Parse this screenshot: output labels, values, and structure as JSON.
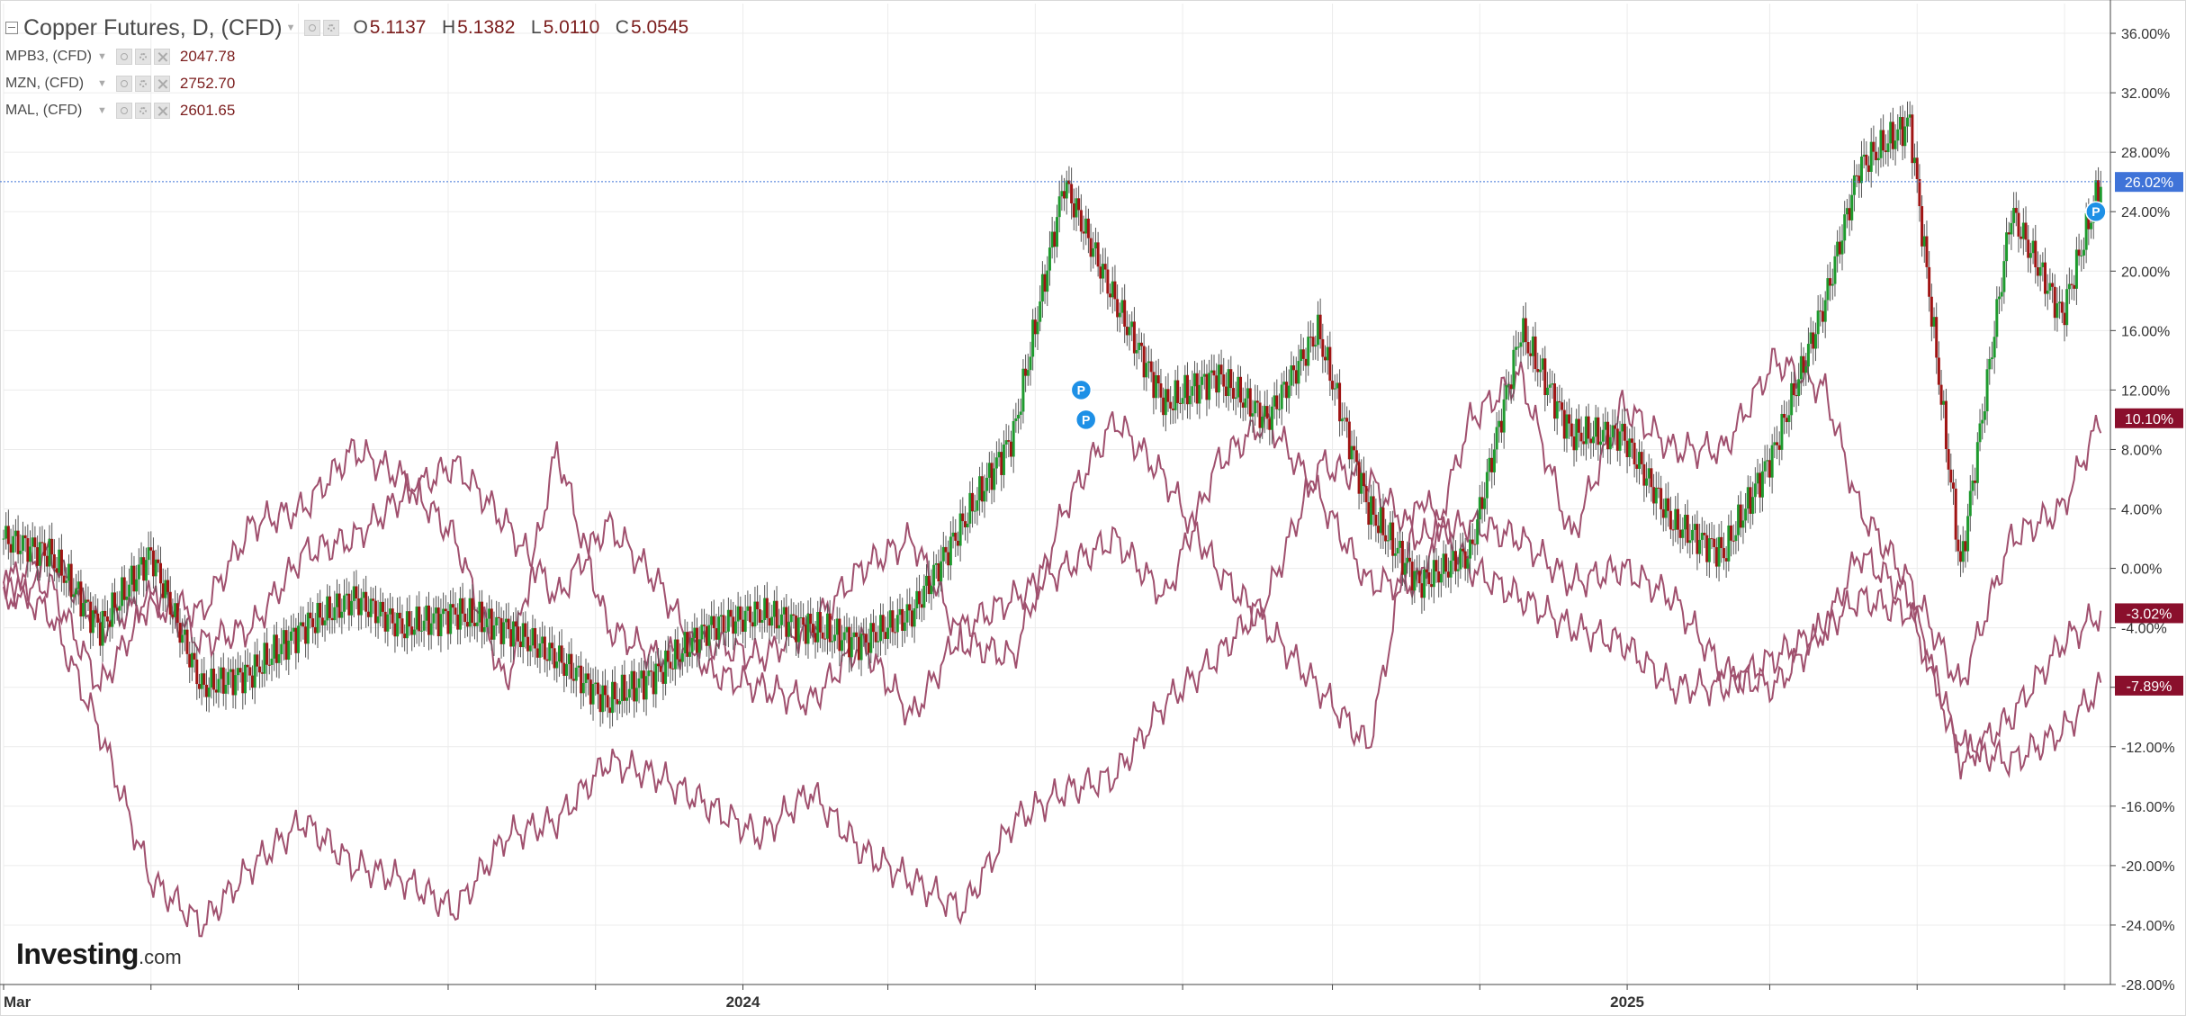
{
  "legend": {
    "main": {
      "title": "Copper Futures, D, (CFD)",
      "o_label": "O",
      "o": "5.1137",
      "h_label": "H",
      "h": "5.1382",
      "l_label": "L",
      "l": "5.0110",
      "c_label": "C",
      "c": "5.0545"
    },
    "series": [
      {
        "name": "MPB3, (CFD)",
        "value": "2047.78"
      },
      {
        "name": "MZN, (CFD)",
        "value": "2752.70"
      },
      {
        "name": "MAL, (CFD)",
        "value": "2601.65"
      }
    ]
  },
  "logo": {
    "brand": "Investing",
    "suffix": ".com"
  },
  "colors": {
    "up": "#1e9a2e",
    "down": "#a01414",
    "compare_line": "#a0506e",
    "current_price_tag": "#3f73d8",
    "series_tag": "#8a0f2c",
    "grid": "#ececec",
    "marker": "#1e90e6"
  },
  "chart_data": {
    "type": "line",
    "y_unit": "percent change",
    "ylim": [
      -28,
      38
    ],
    "y_ticks": [
      "36.00%",
      "32.00%",
      "28.00%",
      "24.00%",
      "20.00%",
      "16.00%",
      "12.00%",
      "8.00%",
      "4.00%",
      "0.00%",
      "-4.00%",
      "-8.00%",
      "-12.00%",
      "-16.00%",
      "-20.00%",
      "-24.00%",
      "-28.00%"
    ],
    "x_labels": [
      "Mar",
      "2024",
      "2025"
    ],
    "x_label_dates": [
      "2023-03-01",
      "2024-01-01",
      "2025-01-01"
    ],
    "x_range": [
      "2023-03-01",
      "2025-07-20"
    ],
    "candles": {
      "name": "Copper Futures",
      "dates": [
        "2023-03-01",
        "2023-03-20",
        "2023-04-10",
        "2023-05-01",
        "2023-05-22",
        "2023-06-12",
        "2023-07-03",
        "2023-07-24",
        "2023-08-14",
        "2023-09-04",
        "2023-09-25",
        "2023-10-16",
        "2023-11-06",
        "2023-11-27",
        "2023-12-18",
        "2024-01-08",
        "2024-01-29",
        "2024-02-19",
        "2024-03-11",
        "2024-04-01",
        "2024-04-22",
        "2024-05-13",
        "2024-06-03",
        "2024-06-24",
        "2024-07-15",
        "2024-08-05",
        "2024-08-26",
        "2024-09-16",
        "2024-10-07",
        "2024-10-28",
        "2024-11-18",
        "2024-12-09",
        "2024-12-30",
        "2025-01-20",
        "2025-02-10",
        "2025-03-03",
        "2025-03-24",
        "2025-04-07",
        "2025-04-28",
        "2025-05-19",
        "2025-06-09",
        "2025-06-30",
        "2025-07-16"
      ],
      "values": [
        2,
        1,
        -4,
        1,
        -8,
        -7,
        -4,
        -2,
        -4,
        -3,
        -4,
        -6,
        -9,
        -7,
        -4,
        -3,
        -4,
        -5,
        -3,
        3,
        9,
        26,
        18,
        11,
        13,
        10,
        16,
        4,
        -1,
        1,
        16,
        9,
        9,
        3,
        1,
        8,
        18,
        27,
        30,
        0,
        24,
        17,
        26
      ],
      "last_tag": "26.02%"
    },
    "series": [
      {
        "name": "MPB3, (CFD)",
        "dates": [
          "2023-03-01",
          "2023-03-20",
          "2023-04-10",
          "2023-05-01",
          "2023-05-22",
          "2023-06-12",
          "2023-07-03",
          "2023-07-24",
          "2023-08-14",
          "2023-09-04",
          "2023-09-25",
          "2023-10-16",
          "2023-11-06",
          "2023-11-27",
          "2023-12-18",
          "2024-01-08",
          "2024-01-29",
          "2024-02-19",
          "2024-03-11",
          "2024-04-01",
          "2024-04-22",
          "2024-05-13",
          "2024-06-03",
          "2024-06-24",
          "2024-07-15",
          "2024-08-05",
          "2024-08-26",
          "2024-09-16",
          "2024-10-07",
          "2024-10-28",
          "2024-11-18",
          "2024-12-09",
          "2024-12-30",
          "2025-01-20",
          "2025-02-10",
          "2025-03-03",
          "2025-03-24",
          "2025-04-07",
          "2025-04-28",
          "2025-05-19",
          "2025-06-09",
          "2025-06-30",
          "2025-07-16"
        ],
        "values": [
          -1,
          -3,
          -11,
          -21,
          -24,
          -20,
          -17,
          -20,
          -21,
          -23,
          -18,
          -17,
          -13,
          -14,
          -16,
          -18,
          -15,
          -19,
          -21,
          -23,
          -17,
          -15,
          -14,
          -9,
          -6,
          -2,
          7,
          6,
          2,
          3,
          2,
          -1,
          0,
          -2,
          -7,
          -8,
          -4,
          -2,
          -3,
          -12,
          -13,
          -11,
          -7.89
        ],
        "last_tag": "-7.89%"
      },
      {
        "name": "MZN, (CFD)",
        "dates": [
          "2023-03-01",
          "2023-03-20",
          "2023-04-10",
          "2023-05-01",
          "2023-05-22",
          "2023-06-12",
          "2023-07-03",
          "2023-07-24",
          "2023-08-14",
          "2023-09-04",
          "2023-09-25",
          "2023-10-16",
          "2023-11-06",
          "2023-11-27",
          "2023-12-18",
          "2024-01-08",
          "2024-01-29",
          "2024-02-19",
          "2024-03-11",
          "2024-04-01",
          "2024-04-22",
          "2024-05-13",
          "2024-06-03",
          "2024-06-24",
          "2024-07-15",
          "2024-08-05",
          "2024-08-26",
          "2024-09-16",
          "2024-10-07",
          "2024-10-28",
          "2024-11-18",
          "2024-12-09",
          "2024-12-30",
          "2025-01-20",
          "2025-02-10",
          "2025-03-03",
          "2025-03-24",
          "2025-04-07",
          "2025-04-28",
          "2025-05-19",
          "2025-06-09",
          "2025-06-30",
          "2025-07-16"
        ],
        "values": [
          -2,
          -1,
          -8,
          -2,
          -5,
          -4,
          1,
          2,
          5,
          7,
          3,
          -2,
          3,
          -1,
          -7,
          -8,
          -9,
          -5,
          -10,
          -4,
          -2,
          0,
          2,
          -2,
          7,
          10,
          5,
          -1,
          -1,
          10,
          13,
          2,
          11,
          8,
          8,
          14,
          12,
          4,
          -1,
          -8,
          2,
          4,
          10.1
        ],
        "last_tag": "10.10%"
      },
      {
        "name": "MAL, (CFD)",
        "dates": [
          "2023-03-01",
          "2023-03-20",
          "2023-04-10",
          "2023-05-01",
          "2023-05-22",
          "2023-06-12",
          "2023-07-03",
          "2023-07-24",
          "2023-08-14",
          "2023-09-04",
          "2023-09-25",
          "2023-10-16",
          "2023-11-06",
          "2023-11-27",
          "2023-12-18",
          "2024-01-08",
          "2024-01-29",
          "2024-02-19",
          "2024-03-11",
          "2024-04-01",
          "2024-04-22",
          "2024-05-13",
          "2024-06-03",
          "2024-06-24",
          "2024-07-15",
          "2024-08-05",
          "2024-08-26",
          "2024-09-16",
          "2024-10-07",
          "2024-10-28",
          "2024-11-18",
          "2024-12-09",
          "2024-12-30",
          "2025-01-20",
          "2025-02-10",
          "2025-03-03",
          "2025-03-24",
          "2025-04-07",
          "2025-04-28",
          "2025-05-19",
          "2025-06-09",
          "2025-06-30",
          "2025-07-16"
        ],
        "values": [
          -1,
          1,
          -4,
          -2,
          -3,
          3,
          4,
          8,
          6,
          2,
          -8,
          8,
          -4,
          -6,
          -5,
          -6,
          -4,
          0,
          2,
          -5,
          -6,
          4,
          10,
          6,
          0,
          -4,
          -8,
          -12,
          5,
          0,
          -2,
          -4,
          -5,
          -8,
          -8,
          -6,
          -4,
          1,
          -2,
          -13,
          -10,
          -5,
          -3.02
        ],
        "last_tag": "-3.02%"
      }
    ],
    "markers": [
      {
        "date": "2024-05-20",
        "y": 12,
        "label": "P"
      },
      {
        "date": "2024-05-22",
        "y": 10,
        "label": "P"
      },
      {
        "date": "2025-07-14",
        "y": 24,
        "label": "P"
      }
    ],
    "price_line_value": 26.02,
    "grid": true
  }
}
